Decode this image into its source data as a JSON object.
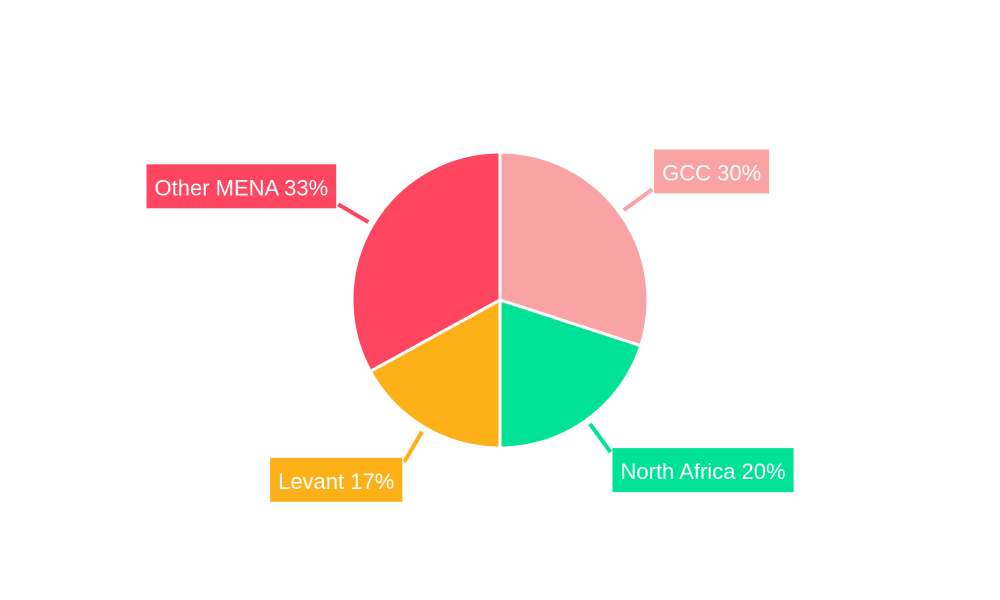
{
  "chart_data": {
    "type": "pie",
    "title": "",
    "legend": "none",
    "slices": [
      {
        "label": "GCC",
        "value": 30,
        "percent_label": "30%",
        "color": "#f9a3a4"
      },
      {
        "label": "North Africa",
        "value": 20,
        "percent_label": "20%",
        "color": "#00e396"
      },
      {
        "label": "Levant",
        "value": 17,
        "percent_label": "17%",
        "color": "#feb019"
      },
      {
        "label": "Other MENA",
        "value": 33,
        "percent_label": "33%",
        "color": "#ff4560"
      }
    ]
  }
}
